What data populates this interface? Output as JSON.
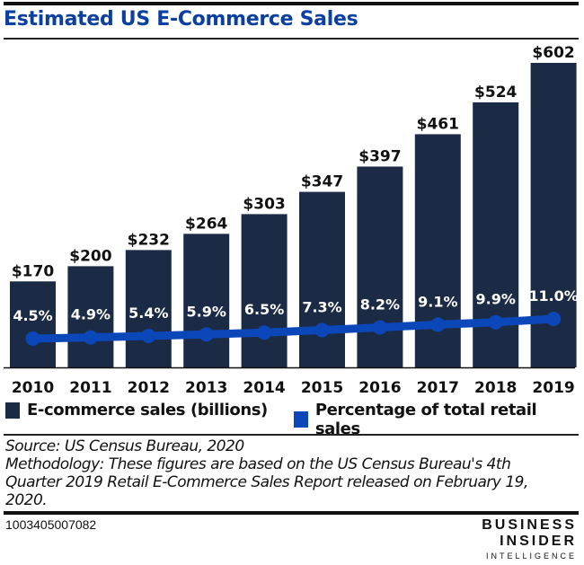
{
  "chart_data": {
    "type": "bar",
    "title": "Estimated US E-Commerce Sales",
    "categories": [
      "2010",
      "2011",
      "2012",
      "2013",
      "2014",
      "2015",
      "2016",
      "2017",
      "2018",
      "2019"
    ],
    "series": [
      {
        "name": "E-commerce sales (billions)",
        "type": "bar",
        "color": "#1c2b45",
        "values": [
          170,
          200,
          232,
          264,
          303,
          347,
          397,
          461,
          524,
          602
        ],
        "labels": [
          "$170",
          "$200",
          "$232",
          "$264",
          "$303",
          "$347",
          "$397",
          "$461",
          "$524",
          "$602"
        ]
      },
      {
        "name": "Percentage of total retail sales",
        "type": "line",
        "color": "#0b47b8",
        "values": [
          4.5,
          4.9,
          5.4,
          5.9,
          6.5,
          7.3,
          8.2,
          9.1,
          9.9,
          11.0
        ],
        "labels": [
          "4.5%",
          "4.9%",
          "5.4%",
          "5.9%",
          "6.5%",
          "7.3%",
          "8.2%",
          "9.1%",
          "9.9%",
          "11.0%"
        ]
      }
    ],
    "xlabel": "",
    "ylabel": "",
    "ylim": [
      0,
      602
    ],
    "grid": false,
    "legend_position": "bottom"
  },
  "legend": {
    "items": [
      {
        "label": "E-commerce sales (billions)",
        "color": "#1c2b45"
      },
      {
        "label": "Percentage of total retail sales",
        "color": "#0b47b8"
      }
    ]
  },
  "footer": {
    "source": "Source: US Census Bureau, 2020",
    "methodology": "Methodology: These figures are based on the US Census Bureau's 4th Quarter 2019 Retail E-Commerce Sales Report released on February 19, 2020.",
    "chart_id": "1003405007082",
    "brand_line1": "BUSINESS",
    "brand_line2": "INSIDER",
    "brand_line3": "INTELLIGENCE"
  }
}
